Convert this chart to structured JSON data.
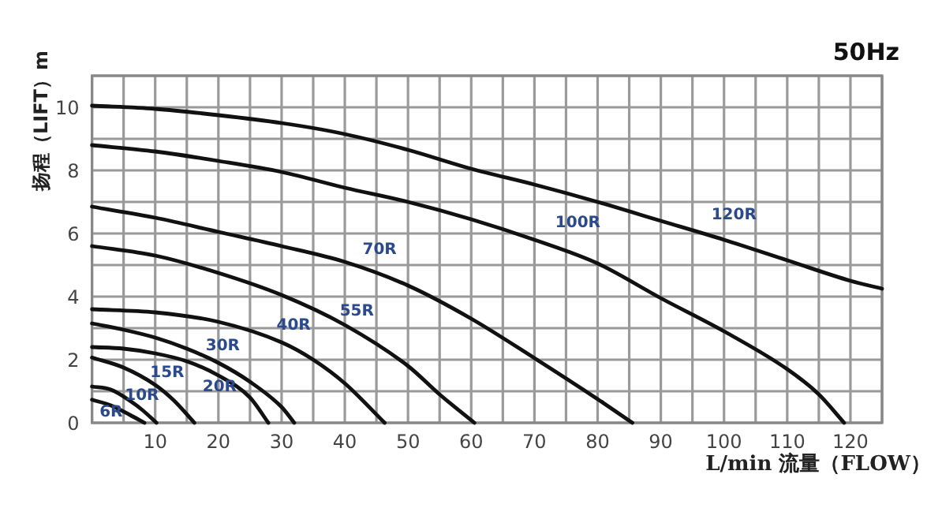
{
  "chart_data": {
    "type": "line",
    "title": "50Hz",
    "xlabel": "L/min 流量（FLOW）",
    "ylabel": "扬程（LIFT）m",
    "xlim": [
      0,
      125
    ],
    "ylim": [
      0,
      11
    ],
    "xticks": [
      {
        "value": 0,
        "label": null
      },
      {
        "value": 5,
        "label": null
      },
      10,
      {
        "value": 15,
        "label": null
      },
      20,
      {
        "value": 25,
        "label": null
      },
      30,
      {
        "value": 35,
        "label": null
      },
      40,
      {
        "value": 45,
        "label": null
      },
      50,
      {
        "value": 55,
        "label": null
      },
      60,
      {
        "value": 65,
        "label": null
      },
      70,
      {
        "value": 75,
        "label": null
      },
      80,
      {
        "value": 85,
        "label": null
      },
      90,
      {
        "value": 95,
        "label": null
      },
      100,
      {
        "value": 105,
        "label": null
      },
      110,
      {
        "value": 115,
        "label": null
      },
      120,
      {
        "value": 125,
        "label": null
      }
    ],
    "yticks": [
      0,
      {
        "value": 1,
        "label": null
      },
      2,
      {
        "value": 3,
        "label": null
      },
      4,
      {
        "value": 5,
        "label": null
      },
      6,
      {
        "value": 7,
        "label": null
      },
      8,
      {
        "value": 9,
        "label": null
      },
      10,
      {
        "value": 11,
        "label": null
      }
    ],
    "grid": true,
    "marker": "none",
    "line_style": "solid",
    "series": [
      {
        "name": "6R",
        "color": "#111111",
        "x": [
          0,
          3,
          6,
          8.3
        ],
        "values": [
          0.73,
          0.55,
          0.25,
          0
        ]
      },
      {
        "name": "10R",
        "color": "#111111",
        "x": [
          0,
          3,
          6,
          8,
          10.2
        ],
        "values": [
          1.15,
          1.05,
          0.7,
          0.4,
          0
        ]
      },
      {
        "name": "15R",
        "color": "#111111",
        "x": [
          0,
          5,
          10,
          13,
          16.2
        ],
        "values": [
          2.07,
          1.75,
          1.2,
          0.7,
          0
        ]
      },
      {
        "name": "20R",
        "color": "#111111",
        "x": [
          0,
          5,
          10,
          15,
          20,
          25,
          27.9
        ],
        "values": [
          2.4,
          2.35,
          2.2,
          1.95,
          1.5,
          0.8,
          0
        ]
      },
      {
        "name": "30R",
        "color": "#111111",
        "x": [
          0,
          5,
          10,
          15,
          20,
          25,
          30,
          32
        ],
        "values": [
          3.15,
          2.95,
          2.7,
          2.35,
          1.9,
          1.3,
          0.5,
          0
        ]
      },
      {
        "name": "40R",
        "color": "#111111",
        "x": [
          0,
          10,
          20,
          30,
          35,
          40,
          46.3
        ],
        "values": [
          3.6,
          3.5,
          3.2,
          2.55,
          2.0,
          1.25,
          0
        ]
      },
      {
        "name": "55R",
        "color": "#111111",
        "x": [
          0,
          10,
          20,
          30,
          40,
          50,
          55,
          60.5
        ],
        "values": [
          5.6,
          5.3,
          4.75,
          4.05,
          3.1,
          1.8,
          0.9,
          0
        ]
      },
      {
        "name": "70R",
        "color": "#111111",
        "x": [
          0,
          10,
          20,
          30,
          40,
          50,
          60,
          70,
          80,
          85.5
        ],
        "values": [
          6.85,
          6.5,
          6.05,
          5.6,
          5.1,
          4.35,
          3.3,
          2.05,
          0.75,
          0
        ]
      },
      {
        "name": "100R",
        "color": "#111111",
        "x": [
          0,
          10,
          20,
          30,
          40,
          50,
          60,
          70,
          80,
          90,
          100,
          110,
          115,
          119
        ],
        "values": [
          8.8,
          8.6,
          8.3,
          7.95,
          7.45,
          7.0,
          6.45,
          5.8,
          5.05,
          3.95,
          2.9,
          1.7,
          0.9,
          0
        ]
      },
      {
        "name": "120R",
        "color": "#111111",
        "x": [
          0,
          10,
          20,
          30,
          40,
          50,
          60,
          70,
          80,
          90,
          100,
          110,
          120,
          125
        ],
        "values": [
          10.05,
          9.95,
          9.75,
          9.5,
          9.15,
          8.65,
          8.05,
          7.55,
          7.0,
          6.4,
          5.8,
          5.15,
          4.5,
          4.25
        ]
      }
    ]
  }
}
